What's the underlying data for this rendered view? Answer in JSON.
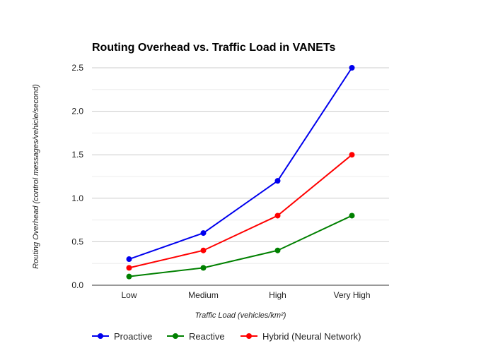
{
  "chart_data": {
    "type": "line",
    "title": "Routing Overhead vs. Traffic Load in VANETs",
    "xlabel": "Traffic Load (vehicles/km²)",
    "ylabel": "Routing Overhead (control messages/vehicle/second)",
    "categories": [
      "Low",
      "Medium",
      "High",
      "Very High"
    ],
    "ylim": [
      0,
      2.5
    ],
    "yticks": [
      "0.0",
      "0.5",
      "1.0",
      "1.5",
      "2.0",
      "2.5"
    ],
    "grid": true,
    "legend_position": "bottom",
    "series": [
      {
        "name": "Proactive",
        "color": "#0000ee",
        "values": [
          0.3,
          0.6,
          1.2,
          2.5
        ]
      },
      {
        "name": "Reactive",
        "color": "#008000",
        "values": [
          0.1,
          0.2,
          0.4,
          0.8
        ]
      },
      {
        "name": "Hybrid (Neural Network)",
        "color": "#ff0000",
        "values": [
          0.2,
          0.4,
          0.8,
          1.5
        ]
      }
    ]
  }
}
